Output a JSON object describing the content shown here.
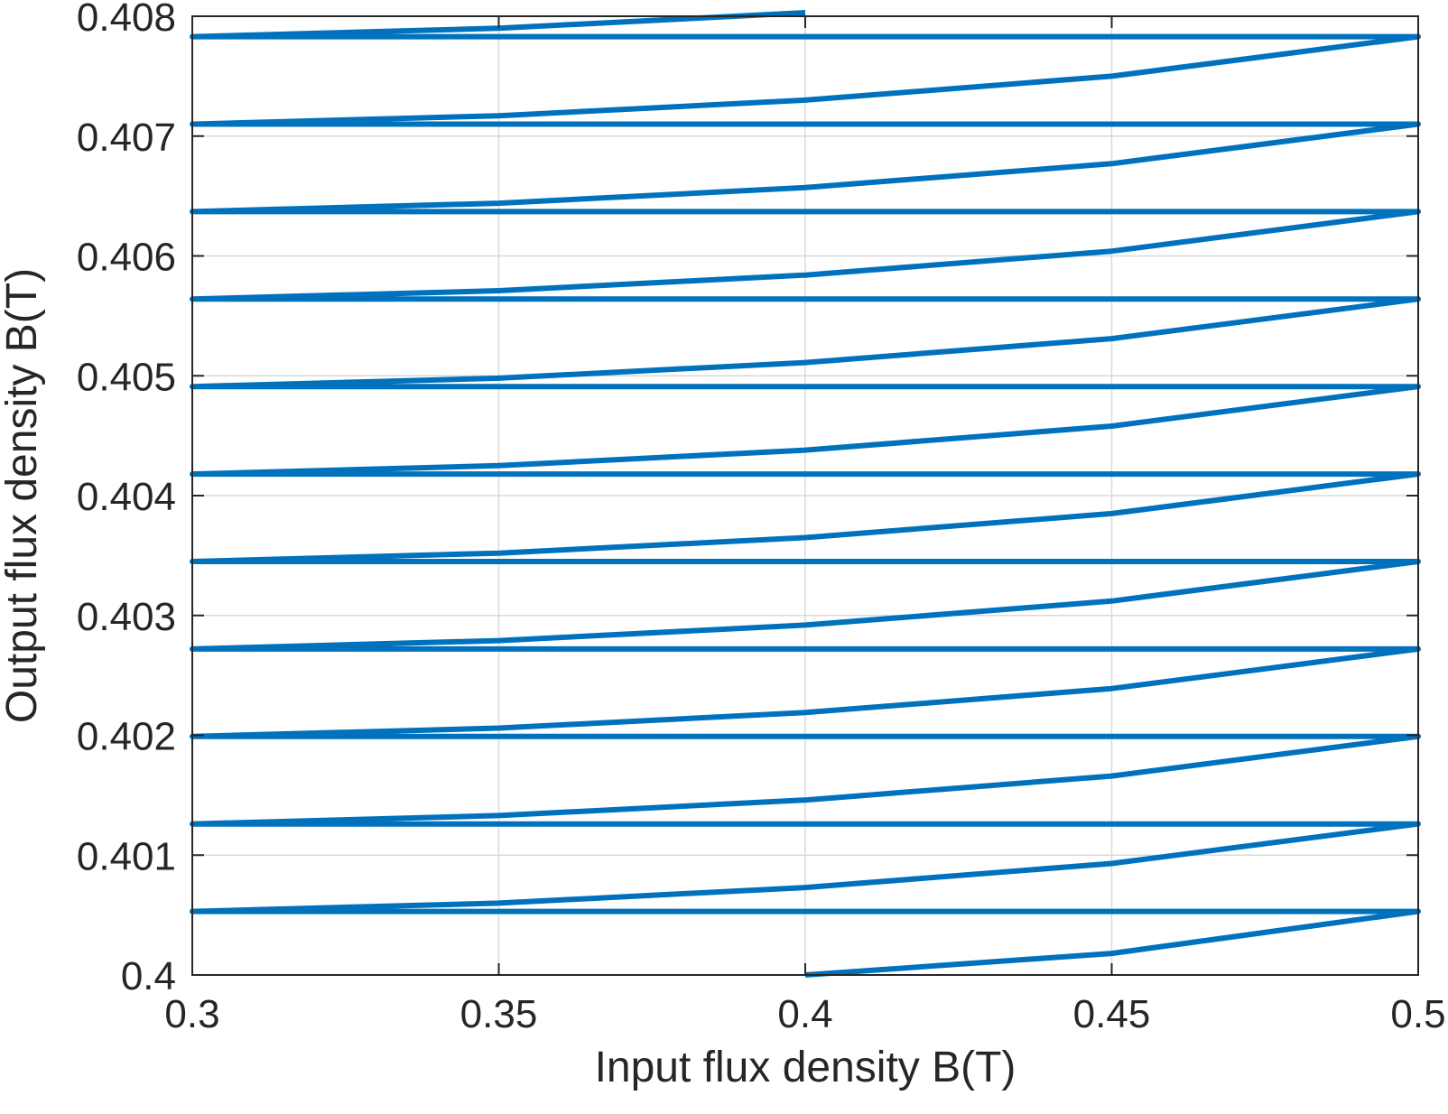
{
  "chart_data": {
    "type": "line",
    "title": "",
    "xlabel": "Input flux density B(T)",
    "ylabel": "Output flux density B(T)",
    "xlim": [
      0.3,
      0.5
    ],
    "ylim": [
      0.4,
      0.408
    ],
    "x_ticks": [
      "0.3",
      "0.35",
      "0.4",
      "0.45",
      "0.5"
    ],
    "y_ticks": [
      "0.4",
      "0.401",
      "0.402",
      "0.403",
      "0.404",
      "0.405",
      "0.406",
      "0.407",
      "0.408"
    ],
    "x_tick_values": [
      0.3,
      0.35,
      0.4,
      0.45,
      0.5
    ],
    "y_tick_values": [
      0.4,
      0.401,
      0.402,
      0.403,
      0.404,
      0.405,
      0.406,
      0.407,
      0.408
    ],
    "grid": true,
    "legend": "none",
    "series": [
      {
        "color": "#0072bd",
        "x": [
          0.4,
          0.45,
          0.5,
          0.3,
          0.35,
          0.4,
          0.45,
          0.5,
          0.3,
          0.35,
          0.4,
          0.45,
          0.5,
          0.3,
          0.35,
          0.4,
          0.45,
          0.5,
          0.3,
          0.35,
          0.4,
          0.45,
          0.5,
          0.3,
          0.35,
          0.4,
          0.45,
          0.5,
          0.3,
          0.35,
          0.4,
          0.45,
          0.5,
          0.3,
          0.35,
          0.4,
          0.45,
          0.5,
          0.3,
          0.35,
          0.4,
          0.45,
          0.5,
          0.3,
          0.35,
          0.4,
          0.45,
          0.5,
          0.3,
          0.35,
          0.4,
          0.45,
          0.5,
          0.3,
          0.35,
          0.4
        ],
        "y": [
          0.4,
          0.40018,
          0.40053,
          0.40053,
          0.4006,
          0.40073,
          0.40093,
          0.40126,
          0.40126,
          0.40133,
          0.40146,
          0.40166,
          0.40199,
          0.40199,
          0.40206,
          0.40219,
          0.40239,
          0.40272,
          0.40272,
          0.40279,
          0.40292,
          0.40312,
          0.40345,
          0.40345,
          0.40352,
          0.40365,
          0.40385,
          0.40418,
          0.40418,
          0.40425,
          0.40438,
          0.40458,
          0.40491,
          0.40491,
          0.40498,
          0.40511,
          0.40531,
          0.40564,
          0.40564,
          0.40571,
          0.40584,
          0.40604,
          0.40637,
          0.40637,
          0.40644,
          0.40657,
          0.40677,
          0.4071,
          0.4071,
          0.40717,
          0.4073,
          0.4075,
          0.40783,
          0.40783,
          0.4079,
          0.40803
        ]
      }
    ]
  }
}
